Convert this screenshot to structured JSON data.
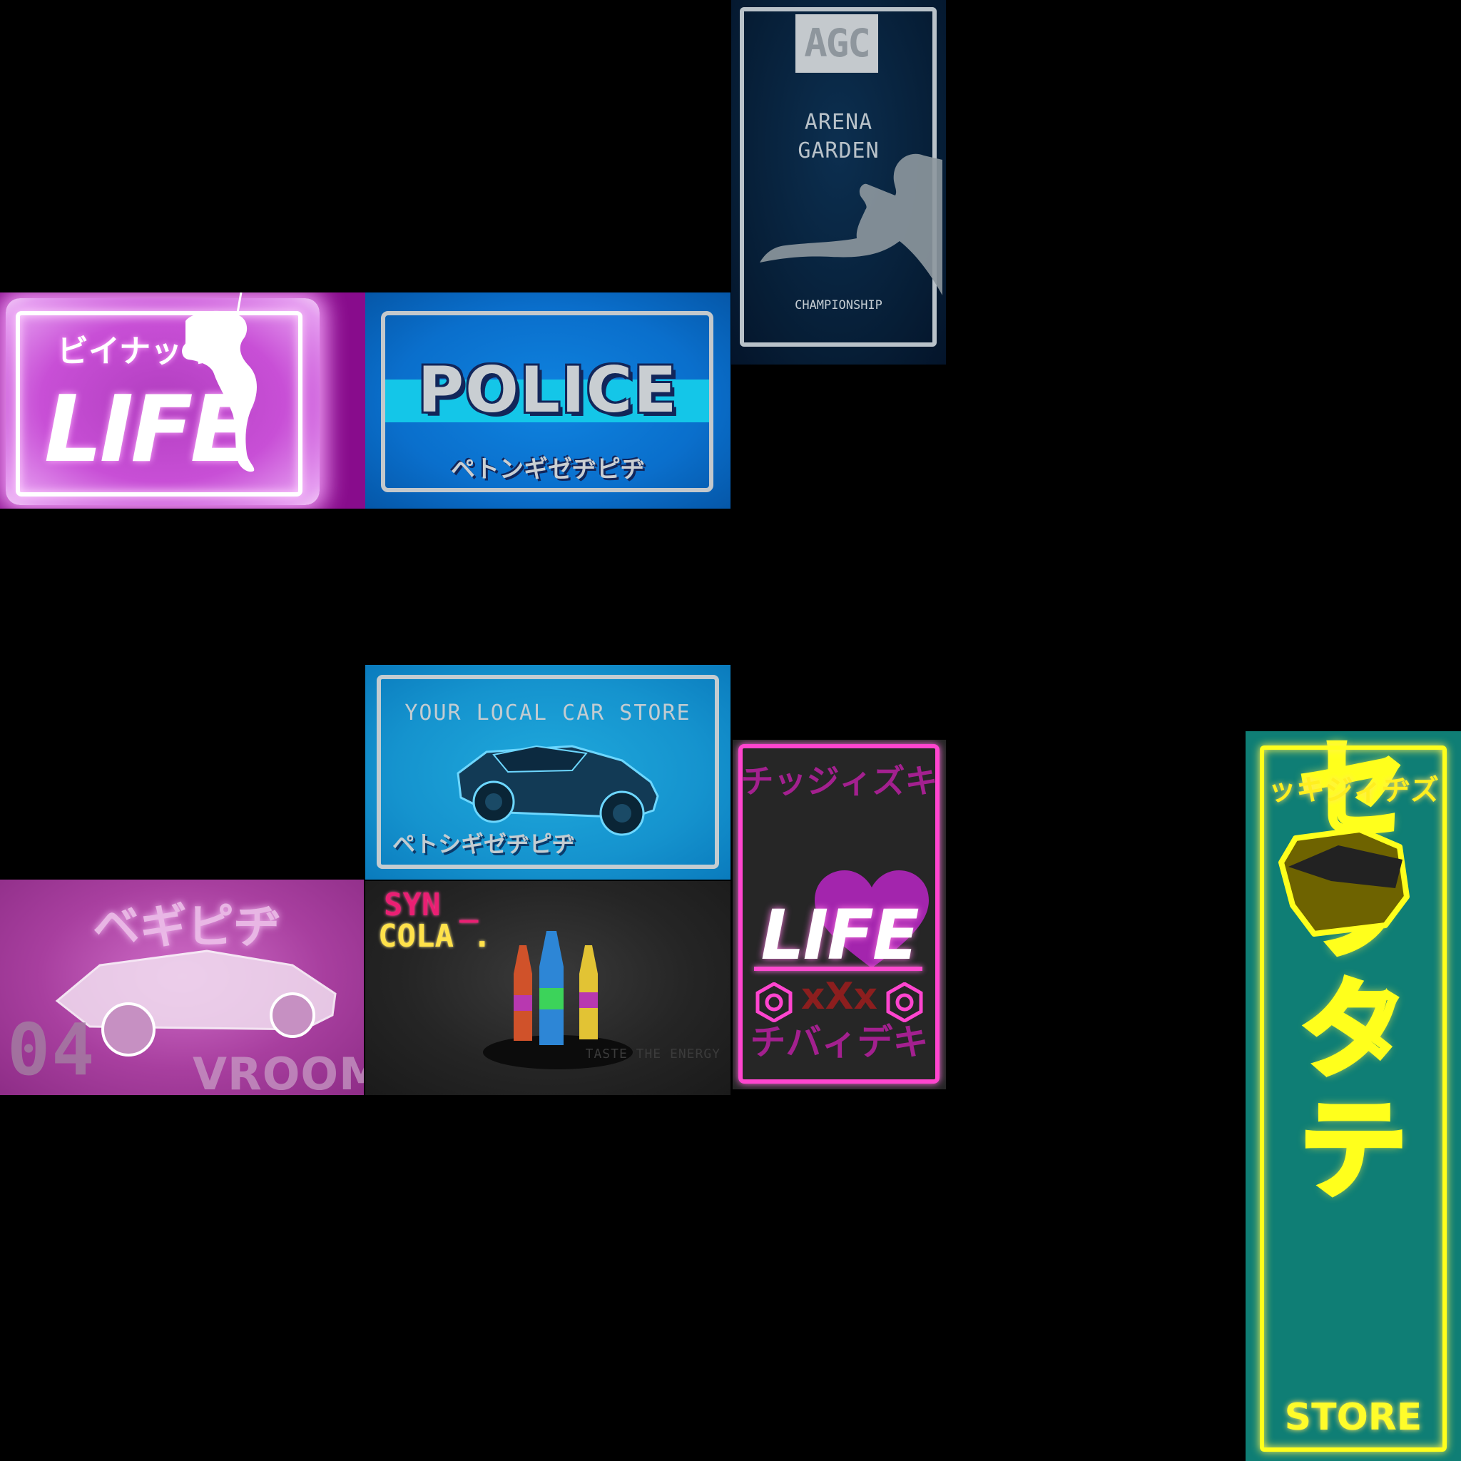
{
  "signs": {
    "arena": {
      "logo": "AGC",
      "line1": "ARENA",
      "line2": "GARDEN",
      "footer": "CHAMPIONSHIP"
    },
    "neon_life": {
      "jp": "ビイナッキ",
      "title": "LIFE"
    },
    "police": {
      "title": "POLICE",
      "jp": "ペトンギゼヂピヂ"
    },
    "car_store": {
      "heading": "YOUR LOCAL CAR STORE",
      "jp": "ペトシギゼヂピヂ"
    },
    "vroom": {
      "jp": "ベギピヂ",
      "number": "04",
      "word": "VROOM"
    },
    "syn_cola": {
      "line1": "SYN _",
      "line2": "COLA .",
      "tagline": "TASTE THE ENERGY"
    },
    "life_xxx": {
      "jp_top": "チッジィズキ",
      "title": "LIFE",
      "mark": "xXx",
      "jp_bottom": "チバィデキ"
    },
    "store": {
      "jp": "ッキジィヂズ",
      "vertical_jp": "セラタテ",
      "word": "STORE"
    }
  },
  "colors": {
    "neon_pink": "#ff45cf",
    "neon_yellow": "#ffff1c",
    "police_blue": "#0a6fcc",
    "arena_navy": "#061d35",
    "teal": "#0f7e75"
  }
}
